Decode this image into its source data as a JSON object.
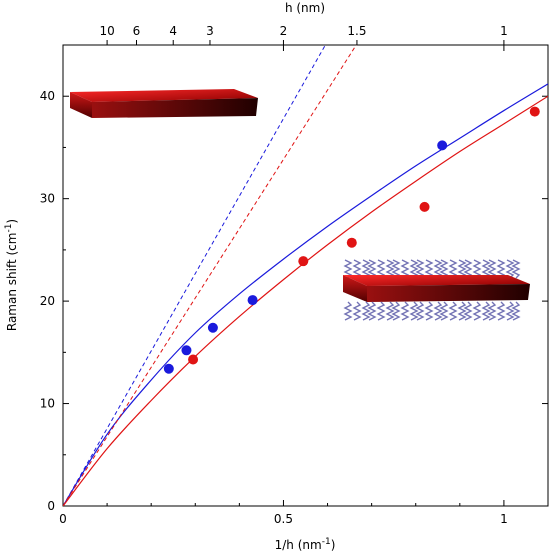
{
  "chart_data": {
    "type": "scatter",
    "xlabel": "1/h (nm",
    "xlabel_sup": "-1",
    "xlabel_close": ")",
    "ylabel": "Raman shift (cm",
    "ylabel_sup": "-1",
    "ylabel_close": ")",
    "top_axis_label": "h (nm)",
    "xlim": [
      0,
      1.1
    ],
    "ylim": [
      0,
      45
    ],
    "x_ticks": [
      0,
      0.5,
      1
    ],
    "x_tick_labels": [
      "0",
      "0.5",
      "1"
    ],
    "y_ticks": [
      0,
      10,
      20,
      30,
      40
    ],
    "y_tick_labels": [
      "0",
      "10",
      "20",
      "30",
      "40"
    ],
    "top_ticks": [
      10,
      6,
      4,
      3,
      2,
      1.5,
      1
    ],
    "top_tick_labels": [
      "10",
      "6",
      "4",
      "3",
      "2",
      "1.5",
      "1"
    ],
    "grid": false,
    "colors": {
      "blue": "#1a1adc",
      "red": "#e01414"
    },
    "series": [
      {
        "color": "blue",
        "points": [
          {
            "x": 0.24,
            "y": 13.4
          },
          {
            "x": 0.28,
            "y": 15.2
          },
          {
            "x": 0.34,
            "y": 17.4
          },
          {
            "x": 0.43,
            "y": 20.1
          },
          {
            "x": 0.86,
            "y": 35.2
          }
        ],
        "fit": {
          "type": "curve",
          "x": [
            0,
            0.1,
            0.2,
            0.3,
            0.4,
            0.5,
            0.6,
            0.7,
            0.8,
            0.9,
            1.0,
            1.1
          ],
          "y": [
            0,
            7.0,
            12.3,
            16.9,
            20.7,
            24.1,
            27.3,
            30.3,
            33.2,
            35.9,
            38.6,
            41.2
          ]
        },
        "dashed": {
          "x": [
            0,
            0.595
          ],
          "y": [
            0,
            45
          ]
        }
      },
      {
        "color": "red",
        "points": [
          {
            "x": 0.295,
            "y": 14.3
          },
          {
            "x": 0.545,
            "y": 23.9
          },
          {
            "x": 0.655,
            "y": 25.7
          },
          {
            "x": 0.82,
            "y": 29.2
          },
          {
            "x": 1.07,
            "y": 38.5
          }
        ],
        "fit": {
          "type": "curve",
          "x": [
            0,
            0.1,
            0.2,
            0.3,
            0.4,
            0.5,
            0.6,
            0.7,
            0.8,
            0.9,
            1.0,
            1.1
          ],
          "y": [
            0,
            5.6,
            10.3,
            14.6,
            18.5,
            22.1,
            25.5,
            28.7,
            31.7,
            34.6,
            37.3,
            40.0
          ]
        },
        "dashed": {
          "x": [
            0,
            0.665
          ],
          "y": [
            0,
            45
          ]
        }
      }
    ]
  },
  "insets": [
    {
      "name": "bare-slab-inset",
      "description_color": "#8b0a0a"
    },
    {
      "name": "ligand-slab-inset",
      "description_color": "#8b0a0a"
    }
  ]
}
